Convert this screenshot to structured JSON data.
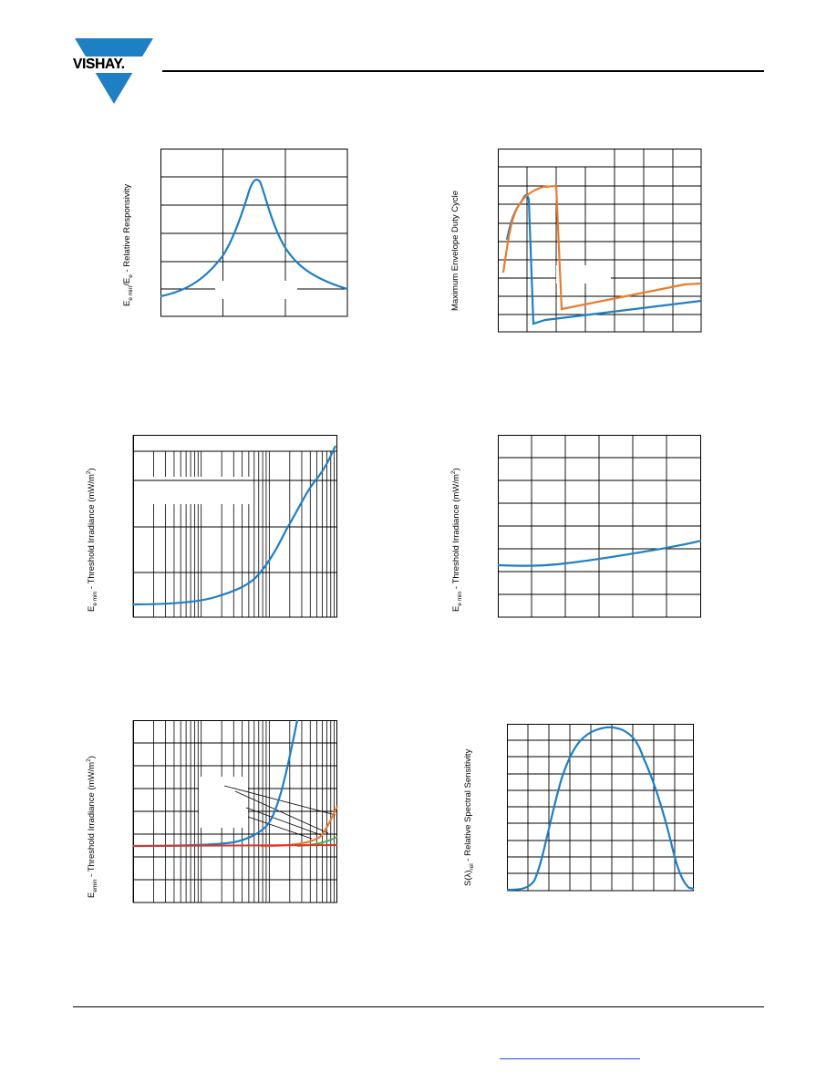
{
  "header": {
    "logo_text": "VISHAY."
  },
  "charts": {
    "c1": {
      "ylabel_parts": [
        "E",
        "e min",
        "/E",
        "e",
        " - Relative Responsivity"
      ]
    },
    "c2": {
      "ylabel": "Maximum Envelope Duty Cycle"
    },
    "c3": {
      "ylabel_parts": [
        "E",
        "e min",
        " - Threshold Irradiance (mW/m",
        "2",
        ")"
      ]
    },
    "c4": {
      "ylabel_parts": [
        "E",
        "e min",
        " - Threshold Irradiance (mW/m",
        "2",
        ")"
      ]
    },
    "c5": {
      "ylabel_parts": [
        "E",
        "emin",
        " - Threshold Irradiance (mW/m",
        "2",
        ")"
      ]
    },
    "c6": {
      "ylabel_parts": [
        "S(λ)",
        "rel",
        " - Relative Spectral Sensitivity"
      ]
    }
  },
  "colors": {
    "blue": "#1e7fc4",
    "orange": "#ec7a2c",
    "red": "#d9372a",
    "green": "#4caf50",
    "link": "#1f4fd1"
  }
}
